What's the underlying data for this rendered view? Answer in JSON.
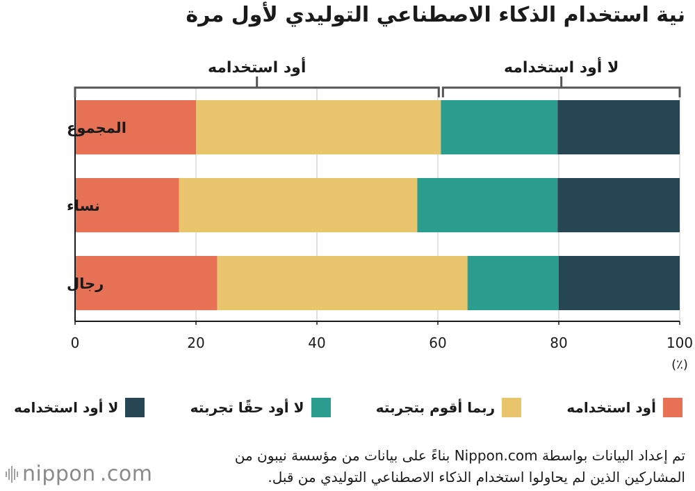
{
  "chart_data": {
    "type": "bar",
    "orientation": "horizontal",
    "stacked": true,
    "title": "نية استخدام الذكاء الاصطناعي التوليدي لأول مرة",
    "categories": [
      "المجموع",
      "نساء",
      "رجال"
    ],
    "series": [
      {
        "name": "أود استخدامه",
        "color": "#e77155",
        "values": [
          20.0,
          17.2,
          23.5
        ]
      },
      {
        "name": "ربما أقوم بتجربته",
        "color": "#e8c56c",
        "values": [
          40.5,
          39.4,
          41.4
        ]
      },
      {
        "name": "لا أود حقًا تجربته",
        "color": "#2a9d8f",
        "values": [
          19.3,
          23.2,
          15.1
        ]
      },
      {
        "name": "لا أود استخدامه",
        "color": "#264653",
        "values": [
          20.2,
          20.2,
          20.0
        ]
      }
    ],
    "xlim": [
      0,
      100
    ],
    "xticks": [
      0,
      20,
      40,
      60,
      80,
      100
    ],
    "xlabel": "(٪)",
    "grid": true,
    "brackets": [
      {
        "label": "أود استخدامه",
        "from": 0,
        "to": 60.5
      },
      {
        "label": "لا أود استخدامه",
        "from": 60.5,
        "to": 100
      }
    ]
  },
  "legend": [
    "أود استخدامه",
    "ربما أقوم بتجربته",
    "لا أود حقًا تجربته",
    "لا أود استخدامه"
  ],
  "source": "تم إعداد البيانات بواسطة Nippon.com بناءً على بيانات من مؤسسة نيبون من المشاركين الذين لم يحاولوا استخدام الذكاء الاصطناعي التوليدي من قبل.",
  "logo": {
    "text": "nippon",
    "suffix": ".com",
    "dot_color": "#e77155"
  }
}
